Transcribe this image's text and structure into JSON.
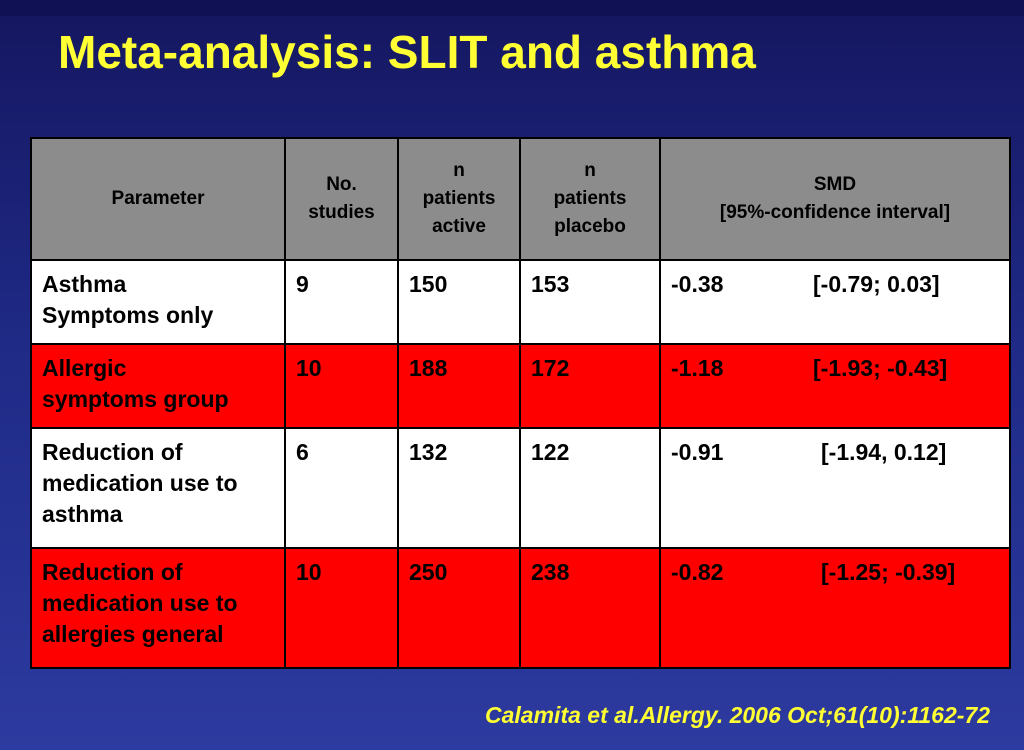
{
  "slide": {
    "title": "Meta-analysis: SLIT and asthma",
    "citation": "Calamita et al.Allergy. 2006 Oct;61(10):1162-72"
  },
  "table": {
    "headers": {
      "parameter": "Parameter",
      "studies_1": "No.",
      "studies_2": "studies",
      "active_1": "n",
      "active_2": "patients",
      "active_3": "active",
      "placebo_1": "n",
      "placebo_2": "patients",
      "placebo_3": "placebo",
      "smd_1": "SMD",
      "smd_2": "[95%-confidence interval]"
    },
    "rows": [
      {
        "parameter_lines": [
          "Asthma",
          "Symptoms only"
        ],
        "studies": "9",
        "active": "150",
        "placebo": "153",
        "smd": "-0.38",
        "ci": "[-0.79; 0.03]"
      },
      {
        "parameter_lines": [
          "Allergic",
          "symptoms group"
        ],
        "studies": "10",
        "active": "188",
        "placebo": "172",
        "smd": "-1.18",
        "ci": "[-1.93; -0.43]"
      },
      {
        "parameter_lines": [
          "Reduction of",
          "medication use to",
          "asthma"
        ],
        "studies": "6",
        "active": "132",
        "placebo": "122",
        "smd": "-0.91",
        "ci": "[-1.94, 0.12]"
      },
      {
        "parameter_lines": [
          "Reduction of",
          "medication use to",
          "allergies general"
        ],
        "studies": "10",
        "active": "250",
        "placebo": "238",
        "smd": "-0.82",
        "ci": "[-1.25; -0.39]"
      }
    ]
  },
  "colors": {
    "title": "#ffff33",
    "header_bg": "#8c8c8c",
    "highlight_row": "#ff0000",
    "plain_row": "#ffffff",
    "background": "#1f2a86"
  }
}
